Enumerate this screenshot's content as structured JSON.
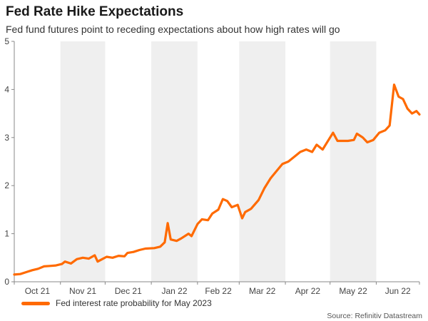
{
  "chart_data": {
    "type": "line",
    "title": "Fed Rate Hike Expectations",
    "subtitle": "Fed fund futures point to receding expectations about how high rates will go",
    "xlabel": "",
    "ylabel": "",
    "x_tick_labels": [
      "Oct 21",
      "Nov 21",
      "Dec 21",
      "Jan 22",
      "Feb 22",
      "Mar 22",
      "Apr 22",
      "May 22",
      "Jun 22"
    ],
    "x_range": [
      "2021-10-01",
      "2022-06-30"
    ],
    "ylim": [
      0,
      5
    ],
    "y_ticks": [
      0,
      1,
      2,
      3,
      4,
      5
    ],
    "grid": false,
    "shaded_alternate_months": true,
    "legend_position": "bottom-left",
    "source": "Source: Refinitiv Datastream",
    "series": [
      {
        "name": "Fed interest rate probability for May 2023",
        "color": "#ff6a00",
        "points": [
          [
            "2021-10-01",
            0.15
          ],
          [
            "2021-10-05",
            0.16
          ],
          [
            "2021-10-09",
            0.2
          ],
          [
            "2021-10-13",
            0.24
          ],
          [
            "2021-10-17",
            0.27
          ],
          [
            "2021-10-21",
            0.32
          ],
          [
            "2021-10-25",
            0.33
          ],
          [
            "2021-10-29",
            0.34
          ],
          [
            "2021-11-02",
            0.37
          ],
          [
            "2021-11-04",
            0.42
          ],
          [
            "2021-11-08",
            0.38
          ],
          [
            "2021-11-12",
            0.47
          ],
          [
            "2021-11-16",
            0.5
          ],
          [
            "2021-11-20",
            0.48
          ],
          [
            "2021-11-24",
            0.55
          ],
          [
            "2021-11-26",
            0.42
          ],
          [
            "2021-11-29",
            0.47
          ],
          [
            "2021-12-02",
            0.52
          ],
          [
            "2021-12-06",
            0.5
          ],
          [
            "2021-12-10",
            0.54
          ],
          [
            "2021-12-14",
            0.53
          ],
          [
            "2021-12-16",
            0.6
          ],
          [
            "2021-12-20",
            0.62
          ],
          [
            "2021-12-24",
            0.66
          ],
          [
            "2021-12-28",
            0.69
          ],
          [
            "2022-01-03",
            0.7
          ],
          [
            "2022-01-07",
            0.73
          ],
          [
            "2022-01-10",
            0.82
          ],
          [
            "2022-01-12",
            1.22
          ],
          [
            "2022-01-14",
            0.88
          ],
          [
            "2022-01-18",
            0.85
          ],
          [
            "2022-01-21",
            0.9
          ],
          [
            "2022-01-26",
            1.0
          ],
          [
            "2022-01-28",
            0.95
          ],
          [
            "2022-02-01",
            1.2
          ],
          [
            "2022-02-04",
            1.3
          ],
          [
            "2022-02-08",
            1.28
          ],
          [
            "2022-02-11",
            1.42
          ],
          [
            "2022-02-15",
            1.5
          ],
          [
            "2022-02-18",
            1.72
          ],
          [
            "2022-02-21",
            1.68
          ],
          [
            "2022-02-24",
            1.55
          ],
          [
            "2022-02-28",
            1.6
          ],
          [
            "2022-03-03",
            1.32
          ],
          [
            "2022-03-05",
            1.45
          ],
          [
            "2022-03-09",
            1.52
          ],
          [
            "2022-03-14",
            1.7
          ],
          [
            "2022-03-18",
            1.95
          ],
          [
            "2022-03-22",
            2.15
          ],
          [
            "2022-03-26",
            2.3
          ],
          [
            "2022-03-30",
            2.45
          ],
          [
            "2022-04-03",
            2.5
          ],
          [
            "2022-04-07",
            2.6
          ],
          [
            "2022-04-11",
            2.7
          ],
          [
            "2022-04-15",
            2.75
          ],
          [
            "2022-04-19",
            2.7
          ],
          [
            "2022-04-22",
            2.85
          ],
          [
            "2022-04-26",
            2.75
          ],
          [
            "2022-04-30",
            2.95
          ],
          [
            "2022-05-03",
            3.1
          ],
          [
            "2022-05-06",
            2.93
          ],
          [
            "2022-05-10",
            2.93
          ],
          [
            "2022-05-13",
            2.93
          ],
          [
            "2022-05-17",
            2.95
          ],
          [
            "2022-05-19",
            3.08
          ],
          [
            "2022-05-23",
            3.0
          ],
          [
            "2022-05-26",
            2.9
          ],
          [
            "2022-05-30",
            2.95
          ],
          [
            "2022-06-03",
            3.1
          ],
          [
            "2022-06-07",
            3.15
          ],
          [
            "2022-06-10",
            3.25
          ],
          [
            "2022-06-13",
            4.1
          ],
          [
            "2022-06-16",
            3.85
          ],
          [
            "2022-06-19",
            3.8
          ],
          [
            "2022-06-22",
            3.6
          ],
          [
            "2022-06-25",
            3.5
          ],
          [
            "2022-06-28",
            3.55
          ],
          [
            "2022-06-30",
            3.48
          ]
        ]
      }
    ]
  }
}
